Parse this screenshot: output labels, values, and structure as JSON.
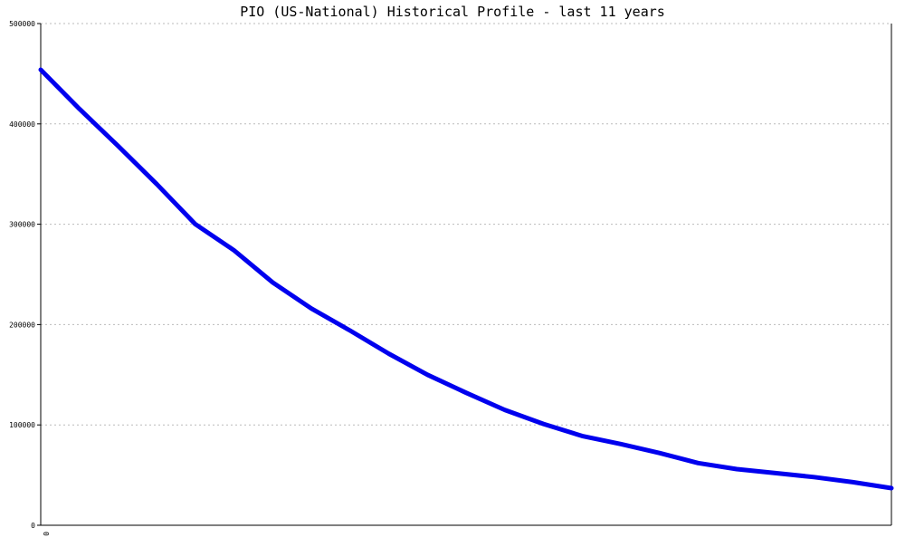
{
  "chart_data": {
    "type": "line",
    "title": "PIO (US-National) Historical Profile - last 11 years",
    "xlabel": "",
    "ylabel": "",
    "ylim": [
      0,
      500000
    ],
    "yticks": [
      "0",
      "100000",
      "200000",
      "300000",
      "400000",
      "500000"
    ],
    "xticks": [
      "0"
    ],
    "grid": true,
    "legend": "none",
    "line_color": "#0000ee",
    "x": [
      0,
      0.5,
      1,
      1.5,
      2,
      2.5,
      3,
      3.5,
      4,
      4.5,
      5,
      5.5,
      6,
      6.5,
      7,
      7.5,
      8,
      8.5,
      9,
      9.5,
      10,
      10.5,
      11
    ],
    "series": [
      {
        "values": [
          454000,
          415000,
          378000,
          340000,
          300000,
          274000,
          242000,
          216000,
          194000,
          171000,
          150000,
          132000,
          115000,
          101000,
          89000,
          81000,
          72000,
          62000,
          56000,
          52000,
          48000,
          43000,
          37000
        ]
      }
    ]
  }
}
